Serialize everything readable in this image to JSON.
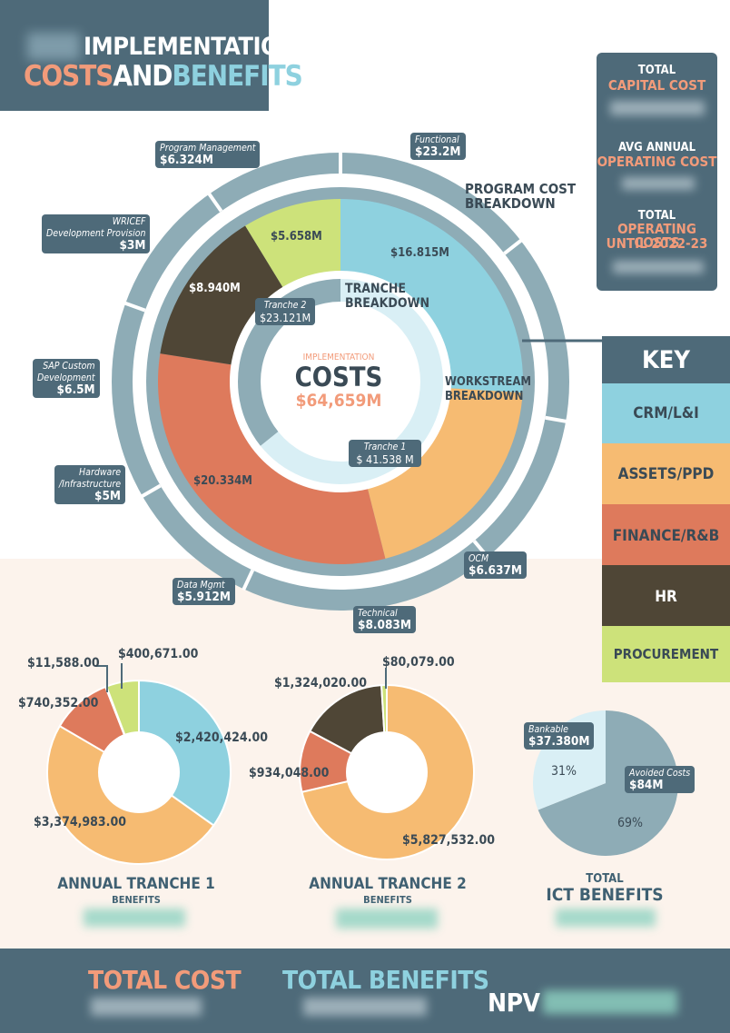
{
  "title": {
    "line1": "IMPLEMENTATION",
    "line2a": "COSTS",
    "line2b": "AND",
    "line2c": "BENEFITS"
  },
  "side": {
    "capital_1": "TOTAL",
    "capital_2": "CAPITAL COST",
    "op_1": "AVG ANNUAL",
    "op_2": "OPERATING COST",
    "tot_1": "TOTAL",
    "tot_2": "OPERATING COSTS",
    "tot_3": "UNTIL 2022-23"
  },
  "colors": {
    "crm": "#8ed1df",
    "assets": "#f6bb72",
    "finance": "#de7a5c",
    "hr": "#4f4636",
    "procurement": "#cde27a",
    "outer": "#8eacb6",
    "dark": "#4e6a79"
  },
  "program_cost": {
    "header_1": "PROGRAM COST",
    "header_2": "BREAKDOWN",
    "tags": [
      {
        "name": "Functional",
        "value": "$23.2M"
      },
      {
        "name": "Program Management",
        "value": "$6.324M"
      },
      {
        "name": "WRICEF",
        "name2": "Development Provision",
        "value": "$3M"
      },
      {
        "name": "SAP Custom",
        "name2": "Development",
        "value": "$6.5M"
      },
      {
        "name": "Hardware",
        "name2": "/Infrastructure",
        "value": "$5M"
      },
      {
        "name": "Data Mgmt",
        "value": "$5.912M"
      },
      {
        "name": "Technical",
        "value": "$8.083M"
      },
      {
        "name": "OCM",
        "value": "$6.637M"
      }
    ]
  },
  "center": {
    "label_1": "IMPLEMENTATION",
    "label_2": "COSTS",
    "total": "$64,659M"
  },
  "tranche": {
    "header_1": "TRANCHE",
    "header_2": "BREAKDOWN",
    "t2_name": "Tranche 2",
    "t2_value": "$23.121M",
    "t1_name": "Tranche 1",
    "t1_value": "$ 41.538 M"
  },
  "workstream": {
    "header_1": "WORKSTREAM",
    "header_2": "BREAKDOWN"
  },
  "key": {
    "title": "KEY",
    "items": [
      "CRM/L&I",
      "ASSETS/PPD",
      "FINANCE/R&B",
      "HR",
      "PROCUREMENT"
    ]
  },
  "chart_data": [
    {
      "type": "pie",
      "title": "WORKSTREAM BREAKDOWN",
      "categories": [
        "CRM/L&I",
        "ASSETS/PPD",
        "FINANCE/R&B",
        "HR",
        "PROCUREMENT"
      ],
      "values": [
        16.815,
        0,
        20.334,
        8.94,
        5.658
      ],
      "labels": [
        "$16.815M",
        "",
        "$20.334M",
        "$8.940M",
        "$5.658M"
      ],
      "angle_values": [
        16.815,
        13.0,
        20.334,
        8.94,
        5.658
      ]
    },
    {
      "type": "pie",
      "title": "TRANCHE BREAKDOWN",
      "categories": [
        "Tranche 1",
        "Tranche 2"
      ],
      "values": [
        41.538,
        23.121
      ]
    },
    {
      "type": "pie",
      "title": "ANNUAL TRANCHE 1",
      "subtitle": "BENEFITS",
      "categories": [
        "CRM/L&I",
        "ASSETS/PPD",
        "FINANCE/R&B",
        "HR",
        "PROCUREMENT"
      ],
      "values": [
        2420424.0,
        3374983.0,
        740352.0,
        11588.0,
        400671.0
      ],
      "labels": [
        "$2,420,424.00",
        "$3,374,983.00",
        "$740,352.00",
        "$11,588.00",
        "$400,671.00"
      ]
    },
    {
      "type": "pie",
      "title": "ANNUAL TRANCHE 2",
      "subtitle": "BENEFITS",
      "categories": [
        "CRM/L&I",
        "ASSETS/PPD",
        "FINANCE/R&B",
        "HR",
        "PROCUREMENT"
      ],
      "values": [
        0,
        5827532.0,
        934048.0,
        1324020.0,
        80079.0
      ],
      "labels": [
        "",
        "$5,827,532.00",
        "$934,048.00",
        "$1,324,020.00",
        "$80,079.00"
      ]
    },
    {
      "type": "pie",
      "title": "TOTAL ICT BENEFITS",
      "categories": [
        "Bankable",
        "Avoided Costs"
      ],
      "values": [
        31,
        69
      ],
      "values_money": [
        "$37.380M",
        "$84M"
      ],
      "percent_labels": [
        "31%",
        "69%"
      ]
    }
  ],
  "pies": {
    "t1_title": "ANNUAL TRANCHE 1",
    "t1_sub": "BENEFITS",
    "t2_title": "ANNUAL TRANCHE 2",
    "t2_sub": "BENEFITS",
    "ict_title_1": "TOTAL",
    "ict_title_2": "ICT BENEFITS",
    "bankable": "Bankable",
    "bankable_val": "$37.380M",
    "avoided": "Avoided Costs",
    "avoided_val": "$84M"
  },
  "footer": {
    "cost": "TOTAL COST",
    "benefits": "TOTAL BENEFITS",
    "npv": "NPV"
  }
}
